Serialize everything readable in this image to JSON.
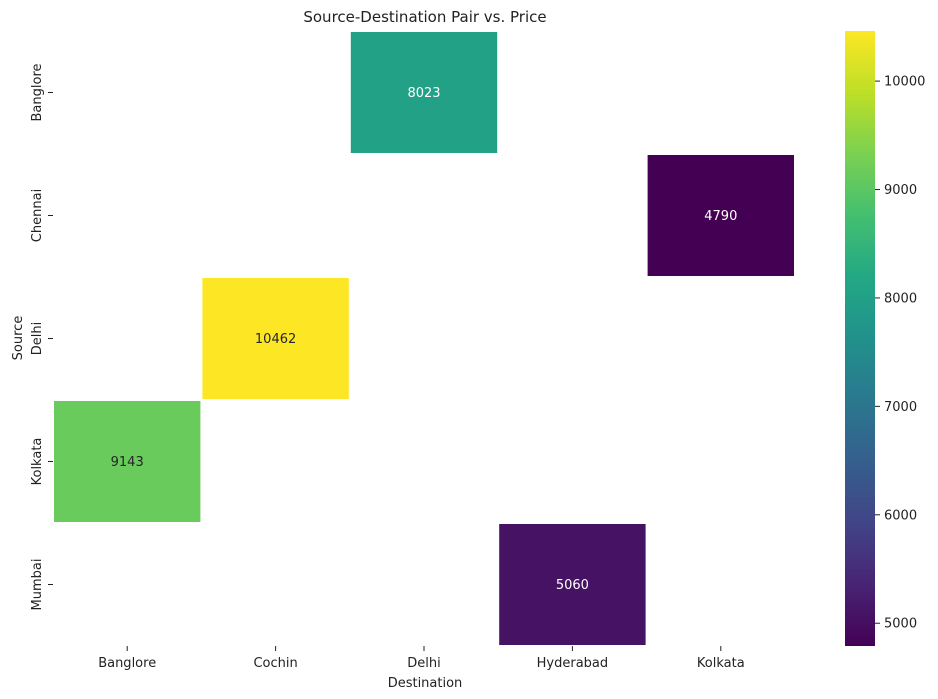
{
  "chart_data": {
    "type": "heatmap",
    "title": "Source-Destination Pair vs. Price",
    "xlabel": "Destination",
    "ylabel": "Source",
    "x_categories": [
      "Banglore",
      "Cochin",
      "Delhi",
      "Hyderabad",
      "Kolkata"
    ],
    "y_categories": [
      "Banglore",
      "Chennai",
      "Delhi",
      "Kolkata",
      "Mumbai"
    ],
    "cells": [
      {
        "source": "Banglore",
        "destination": "Delhi",
        "value": 8023,
        "label": "8023"
      },
      {
        "source": "Chennai",
        "destination": "Kolkata",
        "value": 4790,
        "label": "4790"
      },
      {
        "source": "Delhi",
        "destination": "Cochin",
        "value": 10462,
        "label": "10462"
      },
      {
        "source": "Kolkata",
        "destination": "Banglore",
        "value": 9143,
        "label": "9143"
      },
      {
        "source": "Mumbai",
        "destination": "Hyderabad",
        "value": 5060,
        "label": "5060"
      }
    ],
    "colormap": "viridis",
    "vmin": 4790,
    "vmax": 10462,
    "colorbar_ticks": [
      5000,
      6000,
      7000,
      8000,
      9000,
      10000
    ],
    "colorbar_tick_labels": [
      "5000",
      "6000",
      "7000",
      "8000",
      "9000",
      "10000"
    ],
    "grid": false,
    "cell_border_color": "#ffffff"
  }
}
